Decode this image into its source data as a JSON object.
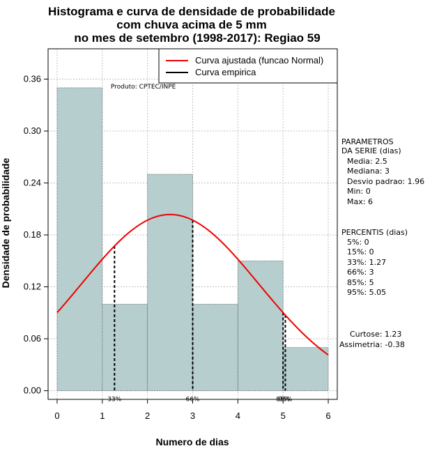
{
  "chart_data": {
    "type": "bar",
    "title_lines": [
      "Histograma e curva de densidade de probabilidade",
      "com chuva acima de 5 mm",
      "no mes de setembro (1998-2017): Regiao 59"
    ],
    "xlabel": "Numero de dias",
    "ylabel": "Densidade de probabilidade",
    "xlim": [
      -0.2,
      6.2
    ],
    "ylim": [
      -0.01,
      0.395
    ],
    "x_ticks": [
      0,
      1,
      2,
      3,
      4,
      5,
      6
    ],
    "y_ticks": [
      0.0,
      0.06,
      0.12,
      0.18,
      0.24,
      0.3,
      0.36
    ],
    "y_tick_labels": [
      "0.00",
      "0.06",
      "0.12",
      "0.18",
      "0.24",
      "0.30",
      "0.36"
    ],
    "bins": [
      {
        "from": 0,
        "to": 1,
        "density": 0.35
      },
      {
        "from": 1,
        "to": 2,
        "density": 0.1
      },
      {
        "from": 2,
        "to": 3,
        "density": 0.25
      },
      {
        "from": 3,
        "to": 4,
        "density": 0.1
      },
      {
        "from": 4,
        "to": 5,
        "density": 0.15
      },
      {
        "from": 5,
        "to": 6,
        "density": 0.05
      }
    ],
    "normal_fit": {
      "mean": 2.5,
      "sd": 1.96
    },
    "percentile_markers": [
      {
        "x": 1.27,
        "label": "33%"
      },
      {
        "x": 3.0,
        "label": "66%"
      },
      {
        "x": 5.0,
        "label": "85%"
      },
      {
        "x": 5.05,
        "label": "95%"
      }
    ],
    "legend": [
      {
        "label": "Curva ajustada (funcao Normal)",
        "color": "#ee0000"
      },
      {
        "label": "Curva empirica",
        "color": "#000000"
      }
    ],
    "producer_note": "Produto: CPTEC/INPE",
    "bar_color": "#b6cece",
    "curve_color": "#ee0000",
    "grid": true
  },
  "side_panel": {
    "params_title_1": "PARAMETROS",
    "params_title_2": "DA SERIE (dias)",
    "media": "Media: 2.5",
    "mediana": "Mediana: 3",
    "desvio": "Desvio padrao: 1.96",
    "min": "Min: 0",
    "max": "Max: 6",
    "perc_title": "PERCENTIS (dias)",
    "p5": "5%: 0",
    "p15": "15%: 0",
    "p33": "33%: 1.27",
    "p66": "66%: 3",
    "p85": "85%: 5",
    "p95": "95%: 5.05",
    "curtose": "Curtose: 1.23",
    "assimetria": "Assimetria: -0.38"
  }
}
